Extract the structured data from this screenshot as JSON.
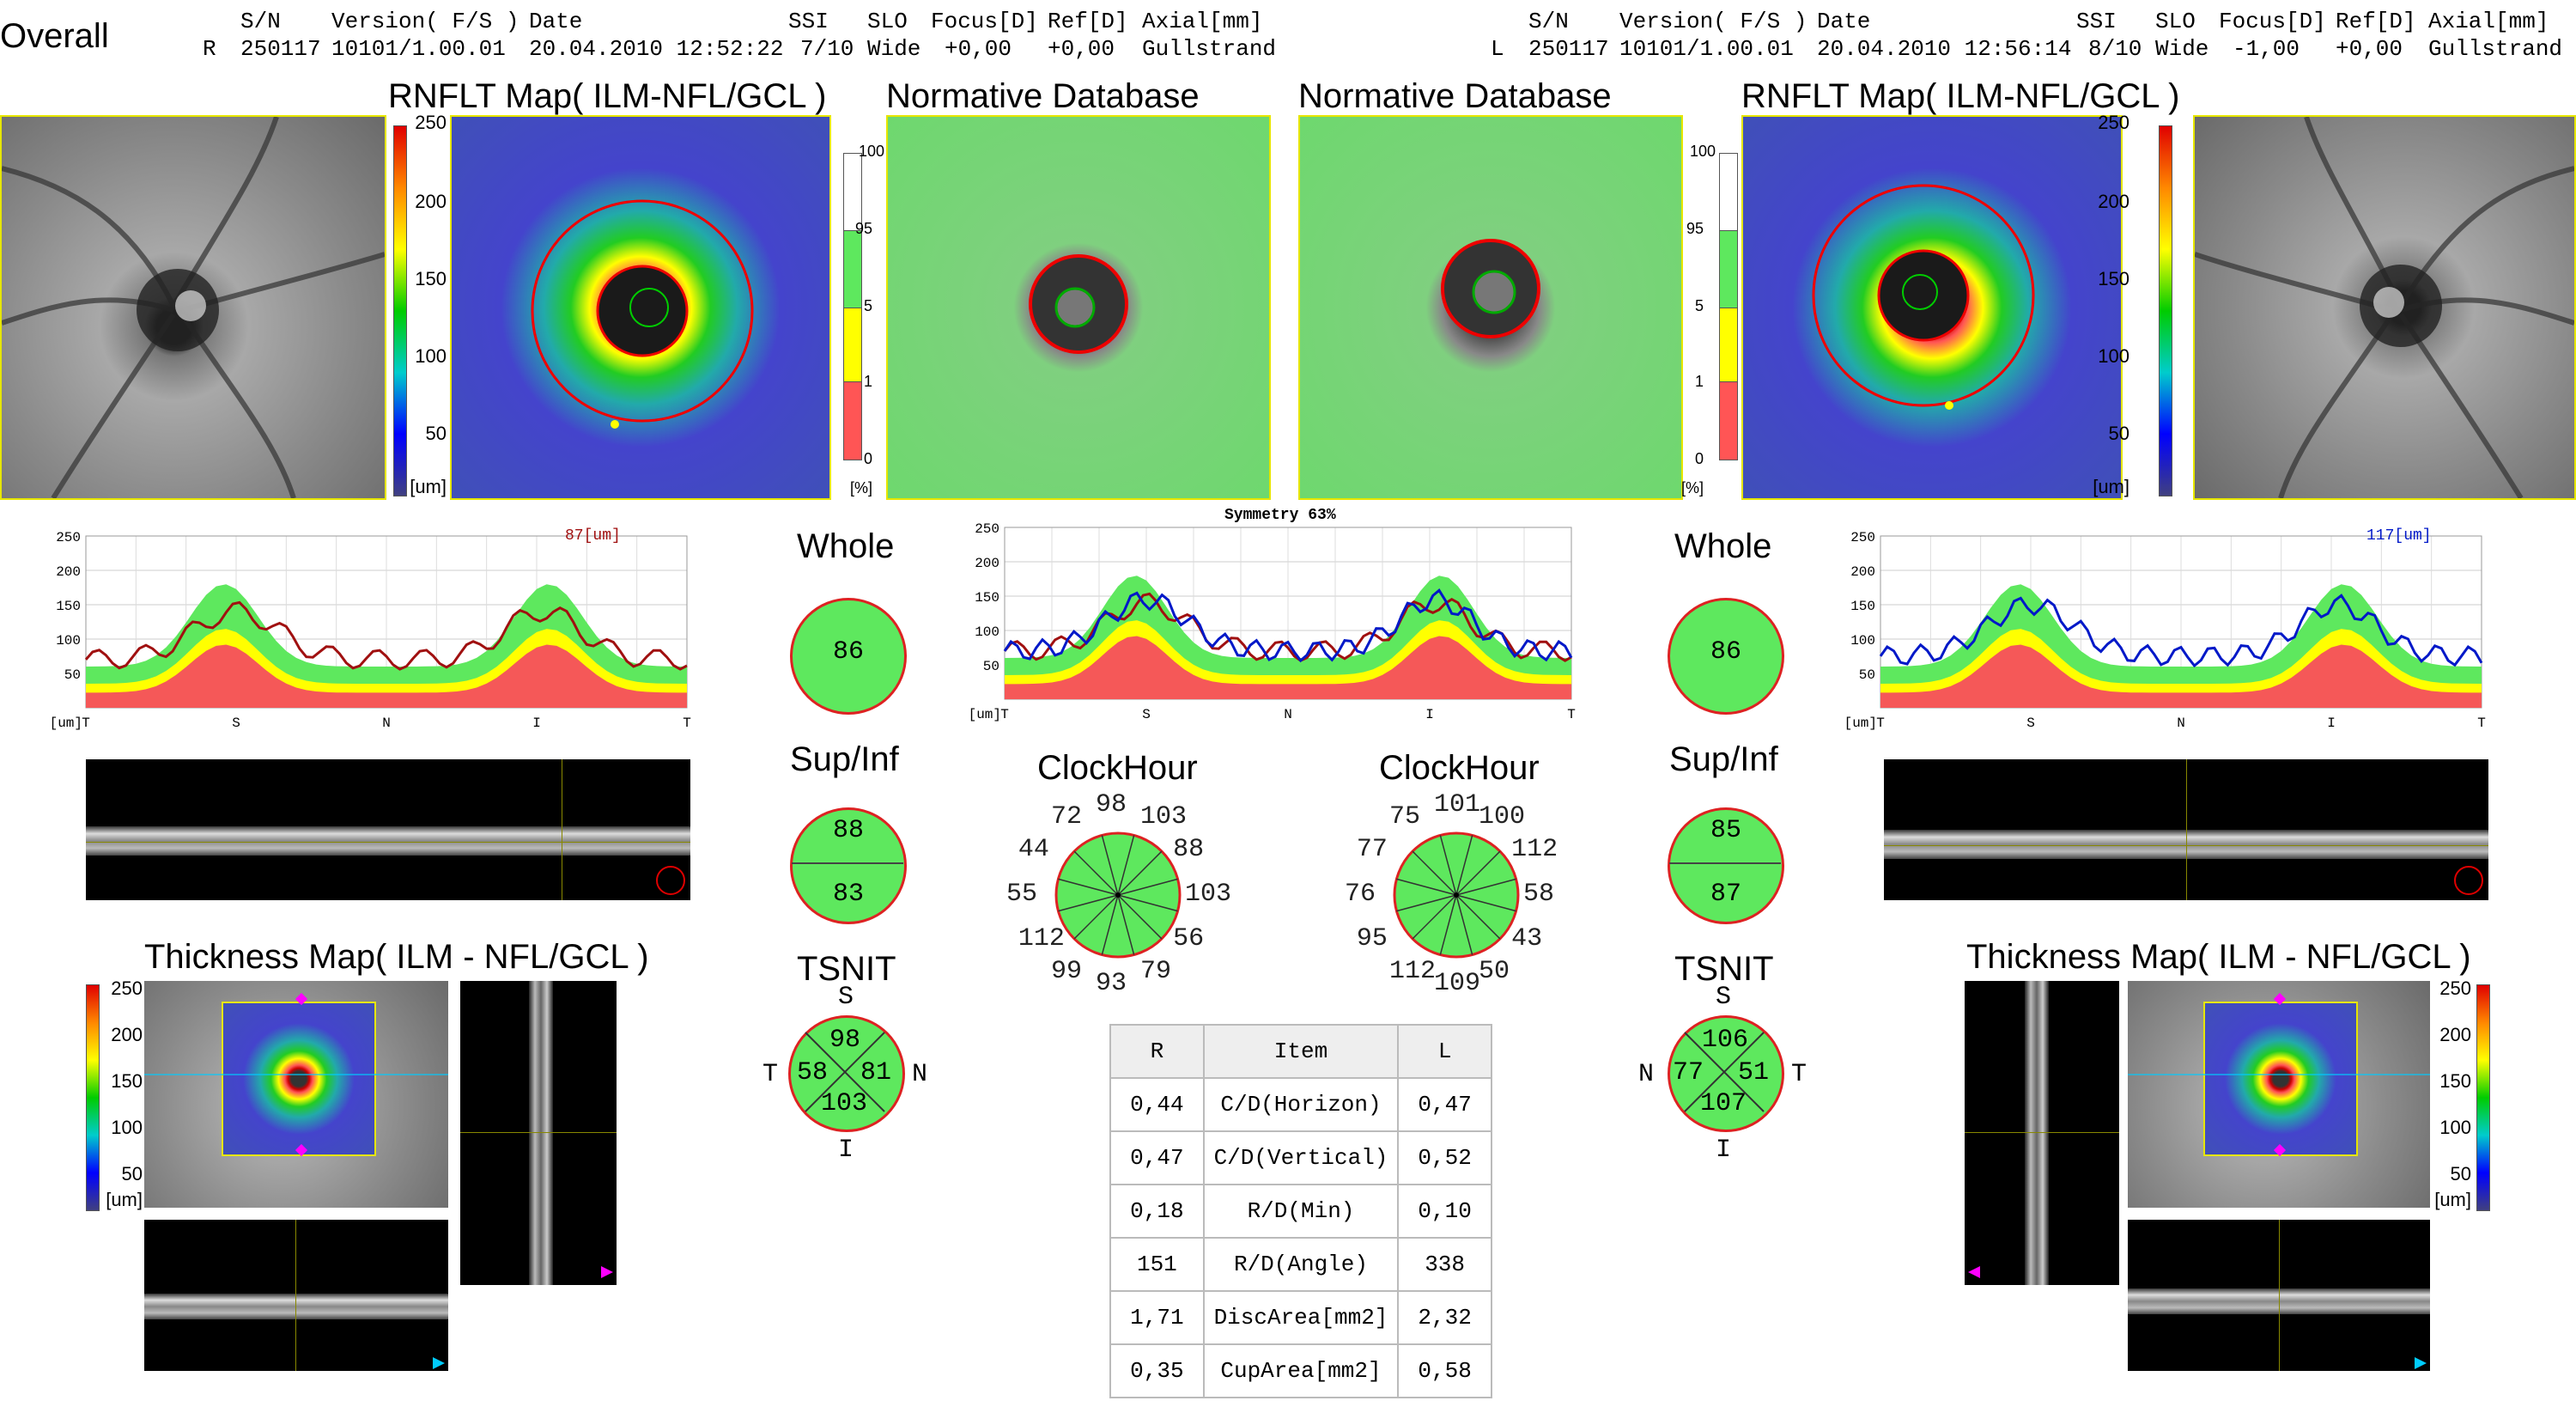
{
  "page_title": "Overall",
  "header_labels": {
    "sn": "S/N",
    "version": "Version( F/S )",
    "date": "Date",
    "ssi": "SSI",
    "slo": "SLO",
    "focus": "Focus[D]",
    "ref": "Ref[D]",
    "axial": "Axial[mm]"
  },
  "right_eye": {
    "eye": "R",
    "sn": "250117",
    "version": "10101/1.00.01",
    "date": "20.04.2010 12:52:22",
    "ssi": "7/10",
    "slo": "Wide",
    "focus": "+0,00",
    "ref": "+0,00",
    "axial": "Gullstrand",
    "rnflt_title": "RNFLT Map( ILM-NFL/GCL )",
    "norm_title": "Normative Database",
    "tsnit_value_label": "87[um]",
    "whole": "86",
    "sup": "88",
    "inf": "83",
    "tsnit": {
      "s": "98",
      "t": "58",
      "n": "81",
      "i": "103"
    },
    "clock": [
      "103",
      "88",
      "103",
      "56",
      "79",
      "93",
      "99",
      "112",
      "55",
      "44",
      "72",
      "98"
    ],
    "thickness_title": "Thickness Map( ILM - NFL/GCL )"
  },
  "left_eye": {
    "eye": "L",
    "sn": "250117",
    "version": "10101/1.00.01",
    "date": "20.04.2010 12:56:14",
    "ssi": "8/10",
    "slo": "Wide",
    "focus": "-1,00",
    "ref": "+0,00",
    "axial": "Gullstrand",
    "rnflt_title": "RNFLT Map( ILM-NFL/GCL )",
    "norm_title": "Normative Database",
    "tsnit_value_label": "117[um]",
    "whole": "86",
    "sup": "85",
    "inf": "87",
    "tsnit": {
      "s": "106",
      "t": "51",
      "n": "77",
      "i": "107"
    },
    "clock": [
      "100",
      "112",
      "58",
      "43",
      "50",
      "109",
      "112",
      "95",
      "76",
      "77",
      "75",
      "101"
    ],
    "thickness_title": "Thickness Map( ILM - NFL/GCL )"
  },
  "color_scale": {
    "labels": [
      "250",
      "200",
      "150",
      "100",
      "50"
    ],
    "unit": "[um]"
  },
  "percent_scale": {
    "labels": [
      "100",
      "95",
      "5",
      "1",
      "0"
    ],
    "unit": "[%]"
  },
  "tsnit_axis": {
    "ticks": [
      "T",
      "S",
      "N",
      "I",
      "T"
    ],
    "unit": "[um]",
    "y_ticks": [
      "250",
      "200",
      "150",
      "100",
      "50"
    ]
  },
  "symmetry": "Symmetry 63%",
  "labels": {
    "whole": "Whole",
    "supinf": "Sup/Inf",
    "tsnit": "TSNIT",
    "clockhour": "ClockHour",
    "S": "S",
    "I": "I",
    "T": "T",
    "N": "N"
  },
  "table": {
    "headers": [
      "R",
      "Item",
      "L"
    ],
    "rows": [
      [
        "0,44",
        "C/D(Horizon)",
        "0,47"
      ],
      [
        "0,47",
        "C/D(Vertical)",
        "0,52"
      ],
      [
        "0,18",
        "R/D(Min)",
        "0,10"
      ],
      [
        "151",
        "R/D(Angle)",
        "338"
      ],
      [
        "1,71",
        "DiscArea[mm2]",
        "2,32"
      ],
      [
        "0,35",
        "CupArea[mm2]",
        "0,58"
      ]
    ]
  },
  "colors": {
    "normal_green": "#5ee85e",
    "border_red": "#dd2222",
    "right_trace": "#a01010",
    "left_trace": "#0018c8"
  }
}
